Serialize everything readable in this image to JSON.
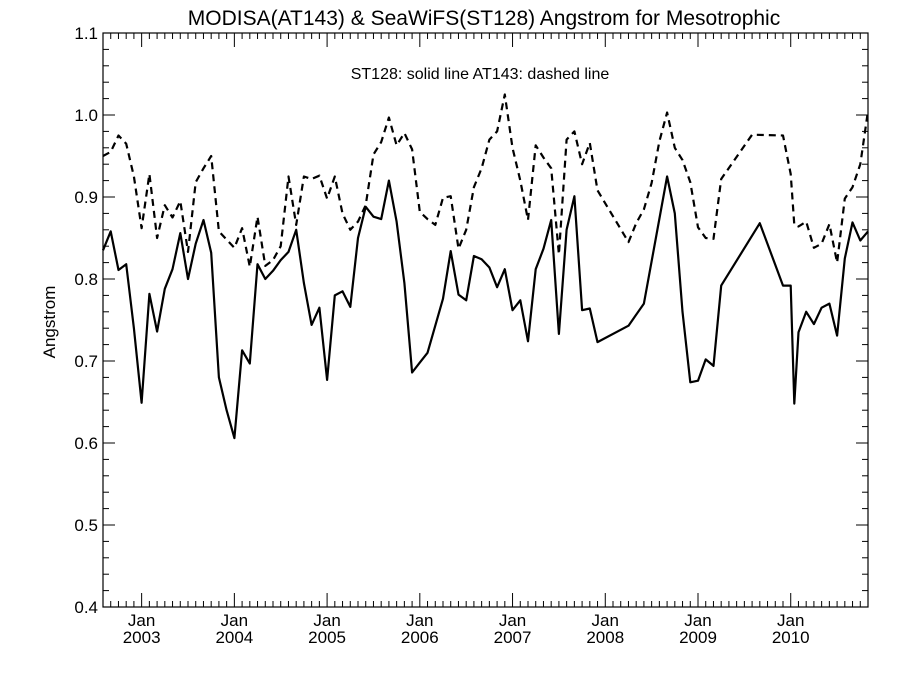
{
  "chart_data": {
    "type": "line",
    "title": "MODISA(AT143) & SeaWiFS(ST128)  Angstrom for Mesotrophic",
    "annotation": "ST128: solid line   AT143: dashed line",
    "xlabel": "",
    "ylabel": "Angstrom",
    "xlim": [
      "2002-08-01",
      "2010-11-01"
    ],
    "ylim": [
      0.4,
      1.1
    ],
    "y_ticks": [
      "0.4",
      "0.5",
      "0.6",
      "0.7",
      "0.8",
      "0.9",
      "1.0",
      "1.1"
    ],
    "x_ticks": [
      {
        "month": "Jan",
        "year": "2003",
        "date": "2003-01-01"
      },
      {
        "month": "Jan",
        "year": "2004",
        "date": "2004-01-01"
      },
      {
        "month": "Jan",
        "year": "2005",
        "date": "2005-01-01"
      },
      {
        "month": "Jan",
        "year": "2006",
        "date": "2006-01-01"
      },
      {
        "month": "Jan",
        "year": "2007",
        "date": "2007-01-01"
      },
      {
        "month": "Jan",
        "year": "2008",
        "date": "2008-01-01"
      },
      {
        "month": "Jan",
        "year": "2009",
        "date": "2009-01-01"
      },
      {
        "month": "Jan",
        "year": "2010",
        "date": "2010-01-01"
      }
    ],
    "grid": false,
    "series": [
      {
        "style": "solid",
        "points": [
          [
            "2002-08-01",
            0.835
          ],
          [
            "2002-09-01",
            0.858
          ],
          [
            "2002-10-01",
            0.811
          ],
          [
            "2002-11-01",
            0.818
          ],
          [
            "2002-12-01",
            0.74
          ],
          [
            "2003-01-01",
            0.649
          ],
          [
            "2003-02-01",
            0.782
          ],
          [
            "2003-03-01",
            0.736
          ],
          [
            "2003-04-01",
            0.788
          ],
          [
            "2003-05-01",
            0.812
          ],
          [
            "2003-06-01",
            0.856
          ],
          [
            "2003-07-01",
            0.8
          ],
          [
            "2003-08-01",
            0.843
          ],
          [
            "2003-09-01",
            0.872
          ],
          [
            "2003-10-01",
            0.832
          ],
          [
            "2003-11-01",
            0.68
          ],
          [
            "2003-12-01",
            0.64
          ],
          [
            "2004-01-01",
            0.606
          ],
          [
            "2004-02-01",
            0.713
          ],
          [
            "2004-03-01",
            0.697
          ],
          [
            "2004-04-01",
            0.818
          ],
          [
            "2004-05-01",
            0.8
          ],
          [
            "2004-06-01",
            0.81
          ],
          [
            "2004-07-01",
            0.823
          ],
          [
            "2004-08-01",
            0.833
          ],
          [
            "2004-09-01",
            0.86
          ],
          [
            "2004-10-01",
            0.795
          ],
          [
            "2004-11-01",
            0.744
          ],
          [
            "2004-12-01",
            0.765
          ],
          [
            "2005-01-01",
            0.677
          ],
          [
            "2005-02-01",
            0.78
          ],
          [
            "2005-03-01",
            0.785
          ],
          [
            "2005-04-01",
            0.766
          ],
          [
            "2005-05-01",
            0.85
          ],
          [
            "2005-06-01",
            0.888
          ],
          [
            "2005-07-01",
            0.876
          ],
          [
            "2005-08-01",
            0.873
          ],
          [
            "2005-09-01",
            0.92
          ],
          [
            "2005-10-01",
            0.87
          ],
          [
            "2005-11-01",
            0.795
          ],
          [
            "2005-12-01",
            0.686
          ],
          [
            "2006-01-01",
            0.698
          ],
          [
            "2006-02-01",
            0.71
          ],
          [
            "2006-04-01",
            0.776
          ],
          [
            "2006-05-01",
            0.834
          ],
          [
            "2006-06-01",
            0.781
          ],
          [
            "2006-07-01",
            0.774
          ],
          [
            "2006-08-01",
            0.828
          ],
          [
            "2006-09-01",
            0.824
          ],
          [
            "2006-10-01",
            0.814
          ],
          [
            "2006-11-01",
            0.79
          ],
          [
            "2006-12-01",
            0.812
          ],
          [
            "2007-01-01",
            0.762
          ],
          [
            "2007-02-01",
            0.774
          ],
          [
            "2007-03-01",
            0.724
          ],
          [
            "2007-04-01",
            0.812
          ],
          [
            "2007-05-01",
            0.837
          ],
          [
            "2007-06-01",
            0.872
          ],
          [
            "2007-07-01",
            0.733
          ],
          [
            "2007-08-01",
            0.86
          ],
          [
            "2007-09-01",
            0.901
          ],
          [
            "2007-10-01",
            0.762
          ],
          [
            "2007-11-01",
            0.764
          ],
          [
            "2007-12-01",
            0.723
          ],
          [
            "2008-04-01",
            0.743
          ],
          [
            "2008-06-01",
            0.77
          ],
          [
            "2008-09-01",
            0.925
          ],
          [
            "2008-10-01",
            0.88
          ],
          [
            "2008-11-01",
            0.76
          ],
          [
            "2008-12-01",
            0.674
          ],
          [
            "2009-01-01",
            0.676
          ],
          [
            "2009-02-01",
            0.702
          ],
          [
            "2009-03-01",
            0.694
          ],
          [
            "2009-04-01",
            0.792
          ],
          [
            "2009-09-01",
            0.868
          ],
          [
            "2009-12-01",
            0.792
          ],
          [
            "2010-01-01",
            0.792
          ],
          [
            "2010-01-15",
            0.648
          ],
          [
            "2010-02-01",
            0.735
          ],
          [
            "2010-03-01",
            0.76
          ],
          [
            "2010-04-01",
            0.745
          ],
          [
            "2010-05-01",
            0.765
          ],
          [
            "2010-06-01",
            0.77
          ],
          [
            "2010-07-01",
            0.731
          ],
          [
            "2010-08-01",
            0.825
          ],
          [
            "2010-09-01",
            0.869
          ],
          [
            "2010-10-01",
            0.847
          ],
          [
            "2010-11-01",
            0.858
          ]
        ]
      },
      {
        "style": "dashed",
        "points": [
          [
            "2002-08-01",
            0.95
          ],
          [
            "2002-09-01",
            0.955
          ],
          [
            "2002-10-01",
            0.975
          ],
          [
            "2002-11-01",
            0.965
          ],
          [
            "2002-12-01",
            0.925
          ],
          [
            "2003-01-01",
            0.862
          ],
          [
            "2003-02-01",
            0.928
          ],
          [
            "2003-03-01",
            0.85
          ],
          [
            "2003-04-01",
            0.89
          ],
          [
            "2003-05-01",
            0.875
          ],
          [
            "2003-06-01",
            0.895
          ],
          [
            "2003-07-01",
            0.833
          ],
          [
            "2003-08-01",
            0.918
          ],
          [
            "2003-09-01",
            0.935
          ],
          [
            "2003-10-01",
            0.95
          ],
          [
            "2003-11-01",
            0.858
          ],
          [
            "2003-12-01",
            0.848
          ],
          [
            "2004-01-01",
            0.838
          ],
          [
            "2004-02-01",
            0.862
          ],
          [
            "2004-03-01",
            0.815
          ],
          [
            "2004-04-01",
            0.876
          ],
          [
            "2004-05-01",
            0.816
          ],
          [
            "2004-06-01",
            0.823
          ],
          [
            "2004-07-01",
            0.84
          ],
          [
            "2004-08-01",
            0.925
          ],
          [
            "2004-09-01",
            0.866
          ],
          [
            "2004-10-01",
            0.925
          ],
          [
            "2004-11-01",
            0.922
          ],
          [
            "2004-12-01",
            0.926
          ],
          [
            "2005-01-01",
            0.898
          ],
          [
            "2005-02-01",
            0.925
          ],
          [
            "2005-03-01",
            0.88
          ],
          [
            "2005-04-01",
            0.86
          ],
          [
            "2005-05-01",
            0.87
          ],
          [
            "2005-06-01",
            0.89
          ],
          [
            "2005-07-01",
            0.952
          ],
          [
            "2005-08-01",
            0.967
          ],
          [
            "2005-09-01",
            0.997
          ],
          [
            "2005-10-01",
            0.963
          ],
          [
            "2005-11-01",
            0.978
          ],
          [
            "2005-12-01",
            0.958
          ],
          [
            "2006-01-01",
            0.882
          ],
          [
            "2006-02-01",
            0.873
          ],
          [
            "2006-03-01",
            0.866
          ],
          [
            "2006-04-01",
            0.899
          ],
          [
            "2006-05-01",
            0.901
          ],
          [
            "2006-06-01",
            0.837
          ],
          [
            "2006-07-01",
            0.86
          ],
          [
            "2006-08-01",
            0.912
          ],
          [
            "2006-09-01",
            0.935
          ],
          [
            "2006-10-01",
            0.97
          ],
          [
            "2006-11-01",
            0.98
          ],
          [
            "2006-12-01",
            1.025
          ],
          [
            "2007-01-01",
            0.96
          ],
          [
            "2007-02-01",
            0.92
          ],
          [
            "2007-03-01",
            0.872
          ],
          [
            "2007-04-01",
            0.963
          ],
          [
            "2007-05-01",
            0.948
          ],
          [
            "2007-06-01",
            0.935
          ],
          [
            "2007-07-01",
            0.83
          ],
          [
            "2007-08-01",
            0.97
          ],
          [
            "2007-09-01",
            0.98
          ],
          [
            "2007-10-01",
            0.94
          ],
          [
            "2007-11-01",
            0.966
          ],
          [
            "2007-12-01",
            0.908
          ],
          [
            "2008-04-01",
            0.845
          ],
          [
            "2008-05-01",
            0.868
          ],
          [
            "2008-06-01",
            0.885
          ],
          [
            "2008-07-01",
            0.917
          ],
          [
            "2008-08-01",
            0.968
          ],
          [
            "2008-09-01",
            1.003
          ],
          [
            "2008-10-01",
            0.96
          ],
          [
            "2008-11-01",
            0.945
          ],
          [
            "2008-12-01",
            0.918
          ],
          [
            "2009-01-01",
            0.863
          ],
          [
            "2009-02-01",
            0.85
          ],
          [
            "2009-03-01",
            0.849
          ],
          [
            "2009-04-01",
            0.922
          ],
          [
            "2009-08-01",
            0.976
          ],
          [
            "2009-12-01",
            0.975
          ],
          [
            "2010-01-01",
            0.928
          ],
          [
            "2010-01-15",
            0.866
          ],
          [
            "2010-02-01",
            0.864
          ],
          [
            "2010-03-01",
            0.87
          ],
          [
            "2010-04-01",
            0.838
          ],
          [
            "2010-05-01",
            0.843
          ],
          [
            "2010-06-01",
            0.867
          ],
          [
            "2010-07-01",
            0.82
          ],
          [
            "2010-08-01",
            0.898
          ],
          [
            "2010-09-01",
            0.912
          ],
          [
            "2010-10-01",
            0.94
          ],
          [
            "2010-11-01",
            1.005
          ]
        ]
      }
    ]
  }
}
